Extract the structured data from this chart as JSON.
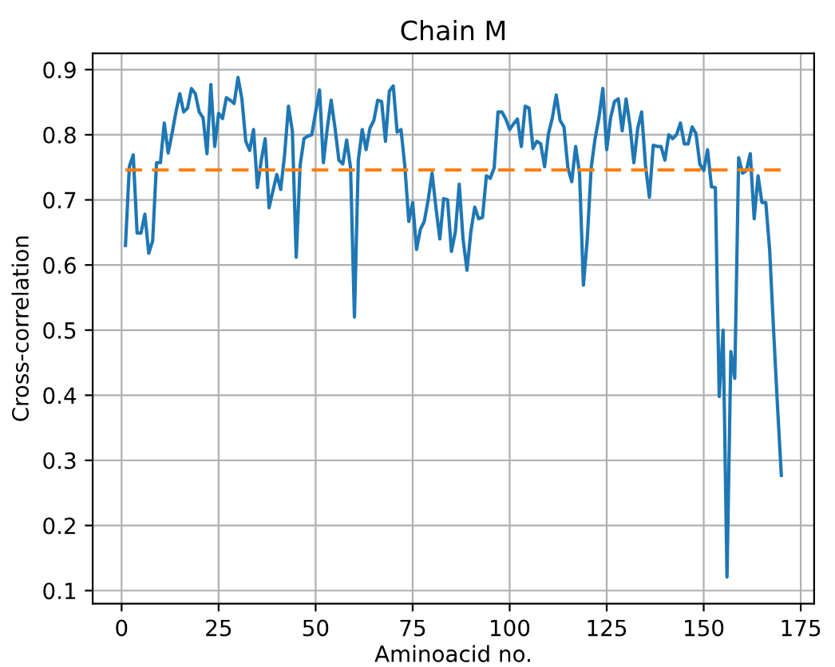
{
  "chart_data": {
    "type": "line",
    "title": "Chain M",
    "xlabel": "Aminoacid no.",
    "ylabel": "Cross-correlation",
    "xlim": [
      -7.45,
      178.45
    ],
    "xticks": [
      0,
      25,
      50,
      75,
      100,
      125,
      150,
      175
    ],
    "ylim": [
      0.08,
      0.925
    ],
    "yticks": [
      0.1,
      0.2,
      0.3,
      0.4,
      0.5,
      0.6,
      0.7,
      0.8,
      0.9
    ],
    "grid": true,
    "series": [
      {
        "color": "#1f77b4",
        "line_style": "solid",
        "x": [
          1,
          2,
          3,
          4,
          5,
          6,
          7,
          8,
          9,
          10,
          11,
          12,
          13,
          14,
          15,
          16,
          17,
          18,
          19,
          20,
          21,
          22,
          23,
          24,
          25,
          26,
          27,
          28,
          29,
          30,
          31,
          32,
          33,
          34,
          35,
          36,
          37,
          38,
          39,
          40,
          41,
          42,
          43,
          44,
          45,
          46,
          47,
          48,
          49,
          50,
          51,
          52,
          53,
          54,
          55,
          56,
          57,
          58,
          59,
          60,
          61,
          62,
          63,
          64,
          65,
          66,
          67,
          68,
          69,
          70,
          71,
          72,
          73,
          74,
          75,
          76,
          77,
          78,
          79,
          80,
          81,
          82,
          83,
          84,
          85,
          86,
          87,
          88,
          89,
          90,
          91,
          92,
          93,
          94,
          95,
          96,
          97,
          98,
          99,
          100,
          101,
          102,
          103,
          104,
          105,
          106,
          107,
          108,
          109,
          110,
          111,
          112,
          113,
          114,
          115,
          116,
          117,
          118,
          119,
          120,
          121,
          122,
          123,
          124,
          125,
          126,
          127,
          128,
          129,
          130,
          131,
          132,
          133,
          134,
          135,
          136,
          137,
          138,
          139,
          140,
          141,
          142,
          143,
          144,
          145,
          146,
          147,
          148,
          149,
          150,
          151,
          152,
          153,
          154,
          155,
          156,
          157,
          158,
          159,
          160,
          161,
          162,
          163,
          164,
          165,
          166,
          167,
          168,
          169,
          170
        ],
        "values": [
          0.63,
          0.751,
          0.769,
          0.649,
          0.649,
          0.678,
          0.618,
          0.637,
          0.757,
          0.757,
          0.818,
          0.772,
          0.802,
          0.835,
          0.863,
          0.835,
          0.841,
          0.871,
          0.863,
          0.835,
          0.826,
          0.771,
          0.877,
          0.782,
          0.833,
          0.825,
          0.857,
          0.853,
          0.848,
          0.888,
          0.855,
          0.79,
          0.776,
          0.808,
          0.719,
          0.761,
          0.794,
          0.688,
          0.714,
          0.739,
          0.716,
          0.769,
          0.844,
          0.806,
          0.612,
          0.753,
          0.794,
          0.798,
          0.8,
          0.835,
          0.869,
          0.757,
          0.81,
          0.853,
          0.81,
          0.761,
          0.755,
          0.792,
          0.749,
          0.52,
          0.761,
          0.808,
          0.777,
          0.81,
          0.822,
          0.853,
          0.851,
          0.79,
          0.867,
          0.875,
          0.804,
          0.808,
          0.751,
          0.667,
          0.696,
          0.624,
          0.655,
          0.667,
          0.7,
          0.741,
          0.688,
          0.64,
          0.702,
          0.7,
          0.621,
          0.651,
          0.724,
          0.639,
          0.592,
          0.651,
          0.689,
          0.671,
          0.673,
          0.737,
          0.733,
          0.749,
          0.835,
          0.835,
          0.824,
          0.808,
          0.817,
          0.824,
          0.782,
          0.844,
          0.841,
          0.779,
          0.79,
          0.786,
          0.751,
          0.802,
          0.826,
          0.861,
          0.822,
          0.812,
          0.749,
          0.728,
          0.782,
          0.741,
          0.569,
          0.64,
          0.749,
          0.794,
          0.826,
          0.871,
          0.777,
          0.826,
          0.851,
          0.855,
          0.806,
          0.855,
          0.814,
          0.757,
          0.81,
          0.835,
          0.753,
          0.704,
          0.784,
          0.782,
          0.782,
          0.761,
          0.8,
          0.794,
          0.8,
          0.818,
          0.786,
          0.786,
          0.812,
          0.802,
          0.755,
          0.745,
          0.777,
          0.72,
          0.719,
          0.398,
          0.5,
          0.121,
          0.467,
          0.426,
          0.765,
          0.741,
          0.745,
          0.771,
          0.671,
          0.737,
          0.696,
          0.696,
          0.622,
          0.5,
          0.385,
          0.277
        ]
      },
      {
        "color": "#ff7f0e",
        "line_style": "dashed",
        "x": [
          1,
          170
        ],
        "values": [
          0.746,
          0.746
        ]
      }
    ]
  }
}
